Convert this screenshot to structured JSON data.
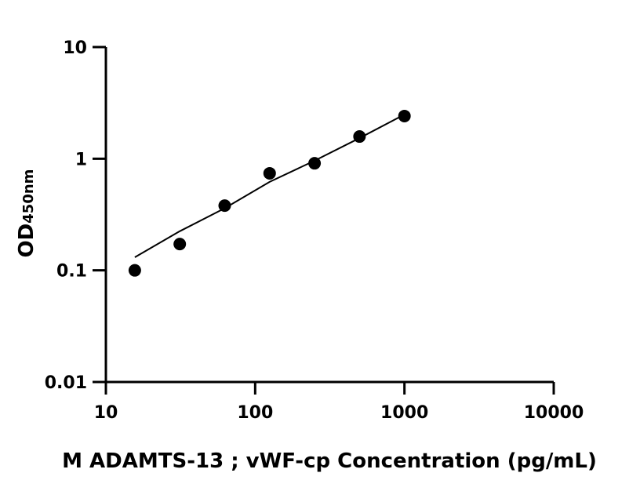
{
  "chart_data": {
    "type": "scatter",
    "xlabel": "M ADAMTS-13 ; vWF-cp Concentration (pg/mL)",
    "ylabel": {
      "main": "OD",
      "sub": "450nm"
    },
    "x": [
      15.625,
      31.25,
      62.5,
      125,
      250,
      500,
      1000
    ],
    "values": [
      0.1,
      0.172,
      0.38,
      0.74,
      0.91,
      1.58,
      2.41
    ],
    "fit": {
      "x": [
        15.625,
        31.25,
        62.5,
        125,
        250,
        500,
        1000
      ],
      "values": [
        0.131,
        0.224,
        0.36,
        0.62,
        0.96,
        1.53,
        2.49
      ]
    },
    "color": "#000000",
    "xlog": true,
    "ylog": true,
    "xlim": [
      10,
      10000
    ],
    "xticks": [
      10,
      100,
      1000,
      10000
    ],
    "ylim": [
      0.01,
      10
    ],
    "yticks": [
      0.01,
      0.1,
      1,
      10
    ]
  }
}
